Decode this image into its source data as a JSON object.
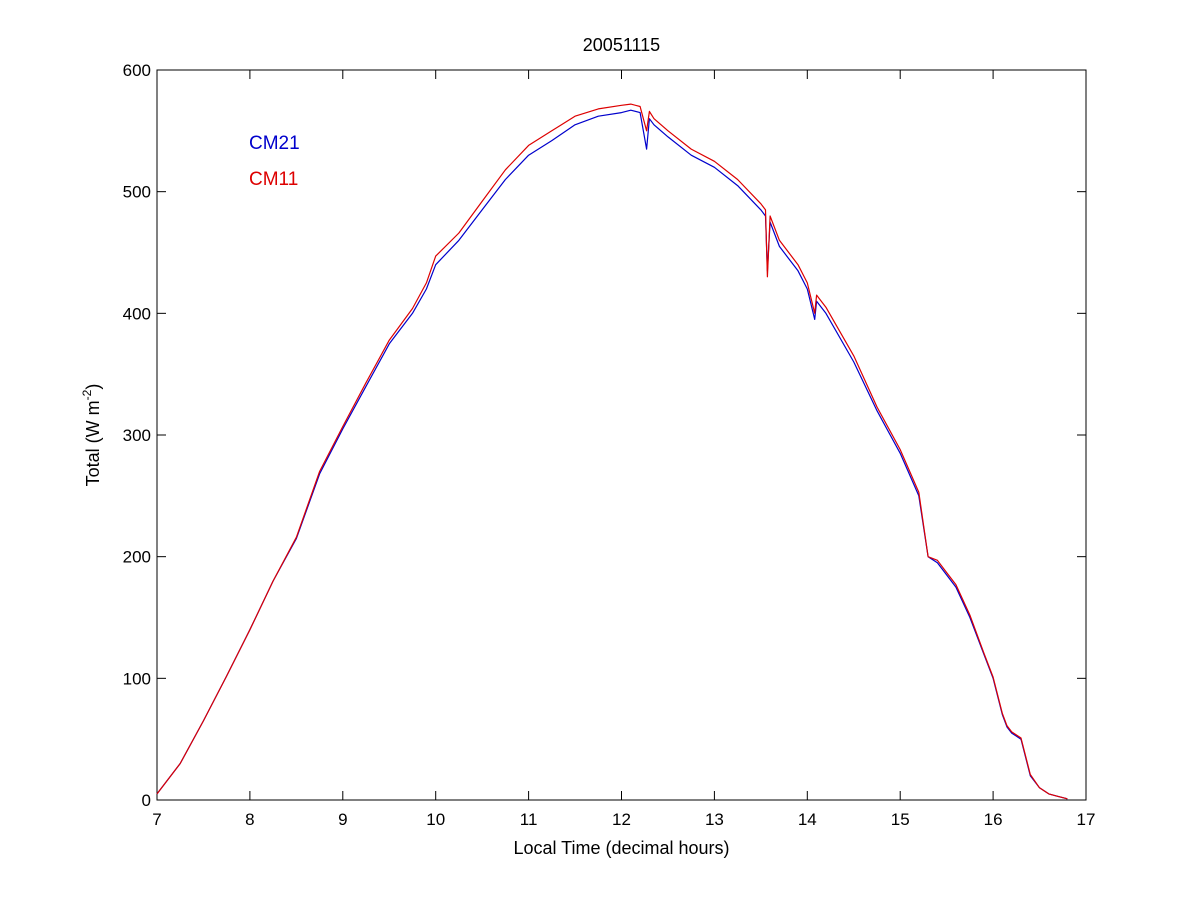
{
  "chart_data": {
    "type": "line",
    "title": "20051115",
    "xlabel": "Local Time (decimal hours)",
    "ylabel": "Total (W m-2)",
    "ylabel_parts": {
      "main": "Total (W m",
      "superscript": "-2",
      "close": ")"
    },
    "xlim": [
      7,
      17
    ],
    "ylim": [
      0,
      600
    ],
    "xticks": [
      7,
      8,
      9,
      10,
      11,
      12,
      13,
      14,
      15,
      16,
      17
    ],
    "yticks": [
      0,
      100,
      200,
      300,
      400,
      500,
      600
    ],
    "grid": false,
    "legend_position": "top-left",
    "series": [
      {
        "name": "CM21",
        "color": "#0000cc",
        "x": [
          7.0,
          7.25,
          7.5,
          7.75,
          8.0,
          8.25,
          8.5,
          8.75,
          9.0,
          9.25,
          9.5,
          9.75,
          9.9,
          10.0,
          10.25,
          10.5,
          10.75,
          11.0,
          11.25,
          11.5,
          11.75,
          12.0,
          12.1,
          12.2,
          12.27,
          12.3,
          12.35,
          12.5,
          12.75,
          13.0,
          13.25,
          13.5,
          13.55,
          13.57,
          13.6,
          13.7,
          13.8,
          13.9,
          14.0,
          14.08,
          14.1,
          14.2,
          14.5,
          14.75,
          15.0,
          15.2,
          15.3,
          15.4,
          15.5,
          15.6,
          15.75,
          15.9,
          16.0,
          16.1,
          16.15,
          16.2,
          16.3,
          16.4,
          16.5,
          16.6,
          16.7,
          16.8
        ],
        "values": [
          5,
          30,
          65,
          102,
          140,
          180,
          215,
          268,
          305,
          340,
          375,
          400,
          420,
          440,
          460,
          485,
          510,
          530,
          542,
          555,
          562,
          565,
          567,
          565,
          535,
          560,
          555,
          545,
          530,
          520,
          505,
          485,
          480,
          435,
          475,
          455,
          445,
          435,
          420,
          395,
          410,
          400,
          360,
          320,
          285,
          250,
          200,
          195,
          185,
          175,
          150,
          120,
          100,
          70,
          60,
          55,
          50,
          20,
          10,
          5,
          3,
          1
        ]
      },
      {
        "name": "CM11",
        "color": "#dd0000",
        "x": [
          7.0,
          7.25,
          7.5,
          7.75,
          8.0,
          8.25,
          8.5,
          8.75,
          9.0,
          9.25,
          9.5,
          9.75,
          9.9,
          10.0,
          10.25,
          10.5,
          10.75,
          11.0,
          11.25,
          11.5,
          11.75,
          12.0,
          12.1,
          12.2,
          12.27,
          12.3,
          12.35,
          12.5,
          12.75,
          13.0,
          13.25,
          13.5,
          13.55,
          13.57,
          13.6,
          13.7,
          13.8,
          13.9,
          14.0,
          14.08,
          14.1,
          14.2,
          14.5,
          14.75,
          15.0,
          15.2,
          15.3,
          15.4,
          15.5,
          15.6,
          15.75,
          15.9,
          16.0,
          16.1,
          16.15,
          16.2,
          16.3,
          16.4,
          16.5,
          16.6,
          16.7,
          16.8
        ],
        "values": [
          5,
          30,
          65,
          102,
          140,
          180,
          216,
          270,
          307,
          343,
          378,
          404,
          425,
          447,
          466,
          492,
          518,
          538,
          550,
          562,
          568,
          571,
          572,
          570,
          550,
          566,
          560,
          550,
          535,
          525,
          510,
          490,
          485,
          430,
          480,
          460,
          450,
          440,
          425,
          400,
          415,
          405,
          365,
          323,
          288,
          253,
          200,
          197,
          187,
          177,
          152,
          121,
          101,
          71,
          61,
          56,
          51,
          21,
          10,
          5,
          3,
          1
        ]
      }
    ]
  }
}
